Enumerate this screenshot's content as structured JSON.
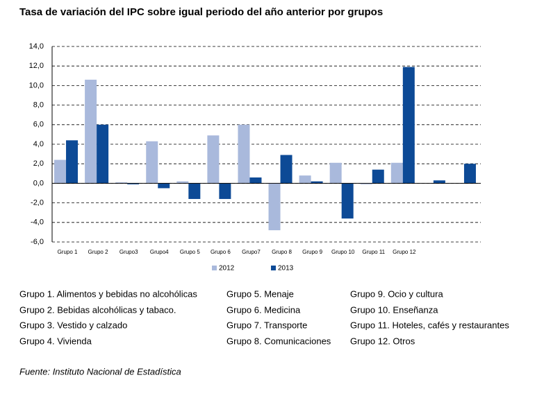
{
  "chart_data": {
    "type": "bar",
    "title": "Tasa de variación del IPC sobre igual periodo del año anterior por grupos",
    "categories": [
      "Grupo 1",
      "Grupo 2",
      "Grupo3",
      "Grupo4",
      "Grupo 5",
      "Grupo 6",
      "Grupo7",
      "Grupo 8",
      "Grupo 9",
      "Grupo 10",
      "Grupo 11",
      "Grupo 12",
      null,
      null
    ],
    "series": [
      {
        "name": "2012",
        "color": "#a9b9dc",
        "values": [
          2.4,
          10.6,
          0.1,
          4.3,
          0.2,
          4.9,
          6.0,
          -4.8,
          0.8,
          2.1,
          -0.1,
          2.1,
          null,
          null
        ]
      },
      {
        "name": "2013",
        "color": "#0d4a96",
        "values": [
          4.4,
          6.0,
          -0.1,
          -0.5,
          -1.6,
          -1.6,
          0.6,
          2.9,
          0.2,
          -3.6,
          1.4,
          11.9,
          0.3,
          2.0
        ]
      }
    ],
    "ylim": [
      -6,
      14
    ],
    "yticks": [
      {
        "value": -6,
        "label": "-6,0"
      },
      {
        "value": -4,
        "label": "-4,0"
      },
      {
        "value": -2,
        "label": "-2,0"
      },
      {
        "value": 0,
        "label": "0,0"
      },
      {
        "value": 2,
        "label": "2,0"
      },
      {
        "value": 4,
        "label": "4,0"
      },
      {
        "value": 6,
        "label": "6,0"
      },
      {
        "value": 8,
        "label": "8,0"
      },
      {
        "value": 10,
        "label": "10,0"
      },
      {
        "value": 12,
        "label": "12,0"
      },
      {
        "value": 14,
        "label": "14,0"
      }
    ],
    "grid": true,
    "legend": "bottom"
  },
  "group_notes": [
    [
      "Grupo 1. Alimentos y bebidas no alcohólicas",
      "Grupo 2. Bebidas alcohólicas y  tabaco.",
      "Grupo 3. Vestido y calzado",
      "Grupo 4. Vivienda"
    ],
    [
      "Grupo 5. Menaje",
      "Grupo 6. Medicina",
      "Grupo 7. Transporte",
      "Grupo 8. Comunicaciones"
    ],
    [
      "Grupo 9. Ocio y cultura",
      "Grupo 10. Enseñanza",
      "Grupo 11. Hoteles, cafés y restaurantes",
      "Grupo 12. Otros"
    ]
  ],
  "source": "Fuente: Instituto Nacional de Estadística"
}
